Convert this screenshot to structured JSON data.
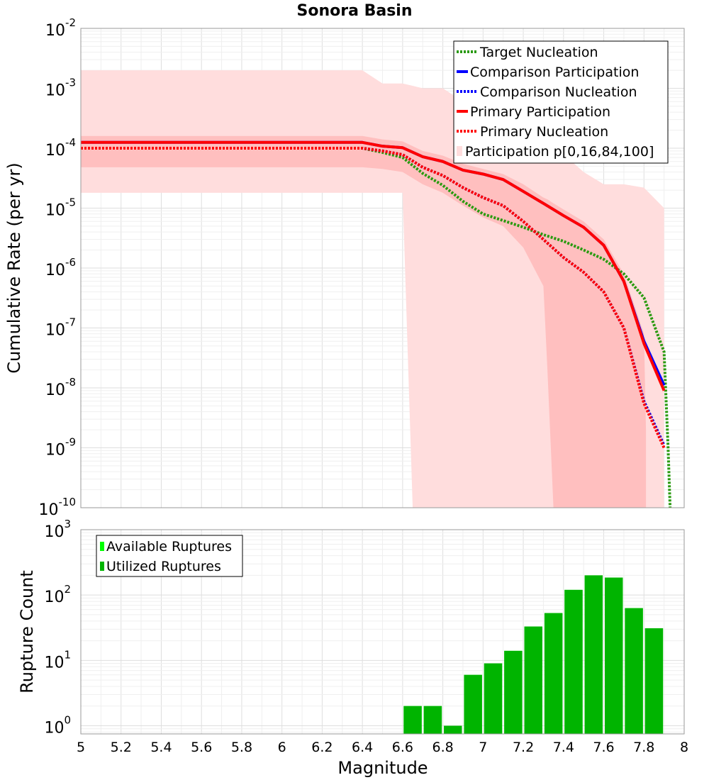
{
  "colors": {
    "target": "#2a9a10",
    "comparison": "#0000ff",
    "primary": "#ff0000",
    "band_outer": "#ffdddd",
    "band_inner": "#ffbfbf",
    "available": "#00ff00",
    "utilized": "#00b400"
  },
  "chart_data": [
    {
      "type": "line",
      "title": "Sonora Basin",
      "xlabel": "",
      "ylabel": "Cumulative Rate (per yr)",
      "xlim": [
        5,
        8
      ],
      "ylim": [
        1e-10,
        0.01
      ],
      "yscale": "log",
      "ytick_labels": [
        {
          "base": "10",
          "exp": "-2"
        },
        {
          "base": "10",
          "exp": "-3"
        },
        {
          "base": "10",
          "exp": "-4"
        },
        {
          "base": "10",
          "exp": "-5"
        },
        {
          "base": "10",
          "exp": "-6"
        },
        {
          "base": "10",
          "exp": "-7"
        },
        {
          "base": "10",
          "exp": "-8"
        },
        {
          "base": "10",
          "exp": "-9"
        },
        {
          "base": "10",
          "exp": "-10"
        }
      ],
      "legend": [
        "Target Nucleation",
        "Comparison Participation",
        "Comparison Nucleation",
        "Primary Participation",
        "Primary Nucleation",
        "Participation p[0,16,84,100]"
      ],
      "legend_position": "top-right",
      "x": [
        5.0,
        5.1,
        5.2,
        5.3,
        5.4,
        5.5,
        5.6,
        5.7,
        5.8,
        5.9,
        6.0,
        6.1,
        6.2,
        6.3,
        6.4,
        6.5,
        6.6,
        6.7,
        6.8,
        6.9,
        7.0,
        7.1,
        7.2,
        7.3,
        7.4,
        7.5,
        7.6,
        7.7,
        7.8,
        7.9
      ],
      "series": [
        {
          "name": "Target Nucleation",
          "style": "dotted",
          "x": [
            5.0,
            6.4,
            6.5,
            6.6,
            6.7,
            6.8,
            6.9,
            7.0,
            7.1,
            7.2,
            7.3,
            7.4,
            7.5,
            7.6,
            7.7,
            7.8,
            7.9,
            7.92,
            7.93
          ],
          "values": [
            0.0001,
            0.0001,
            8.5e-05,
            7e-05,
            3.8e-05,
            2.4e-05,
            1.3e-05,
            8e-06,
            6.2e-06,
            4.8e-06,
            3.6e-06,
            2.8e-06,
            2e-06,
            1.4e-06,
            8e-07,
            3.2e-07,
            4e-08,
            1e-09,
            1e-10
          ]
        },
        {
          "name": "Comparison Participation",
          "style": "solid",
          "x": [
            5.0,
            6.4,
            6.5,
            6.6,
            6.7,
            6.8,
            6.9,
            7.0,
            7.1,
            7.2,
            7.3,
            7.4,
            7.5,
            7.6,
            7.7,
            7.8,
            7.9
          ],
          "values": [
            0.000125,
            0.000125,
            0.000108,
            0.000102,
            7.2e-05,
            6e-05,
            4.3e-05,
            3.7e-05,
            3e-05,
            1.9e-05,
            1.2e-05,
            7.5e-06,
            4.8e-06,
            2.4e-06,
            6e-07,
            6e-08,
            1.1e-08
          ]
        },
        {
          "name": "Comparison Nucleation",
          "style": "dotted",
          "x": [
            5.0,
            6.4,
            6.5,
            6.6,
            6.7,
            6.8,
            6.9,
            7.0,
            7.1,
            7.2,
            7.3,
            7.4,
            7.5,
            7.6,
            7.7,
            7.8,
            7.9
          ],
          "values": [
            0.0001,
            0.0001,
            9e-05,
            7.8e-05,
            4.8e-05,
            3.5e-05,
            2.2e-05,
            1.5e-05,
            1.1e-05,
            6e-06,
            3e-06,
            1.5e-06,
            8.5e-07,
            4e-07,
            1e-07,
            6e-09,
            1.1e-09
          ]
        },
        {
          "name": "Primary Participation",
          "style": "solid",
          "x": [
            5.0,
            6.4,
            6.5,
            6.6,
            6.7,
            6.8,
            6.9,
            7.0,
            7.1,
            7.2,
            7.3,
            7.4,
            7.5,
            7.6,
            7.7,
            7.8,
            7.9
          ],
          "values": [
            0.000125,
            0.000125,
            0.000108,
            0.000102,
            7.2e-05,
            6e-05,
            4.3e-05,
            3.7e-05,
            3e-05,
            1.9e-05,
            1.2e-05,
            7.5e-06,
            4.8e-06,
            2.4e-06,
            6e-07,
            5.5e-08,
            9e-09
          ]
        },
        {
          "name": "Primary Nucleation",
          "style": "dotted",
          "x": [
            5.0,
            6.4,
            6.5,
            6.6,
            6.7,
            6.8,
            6.9,
            7.0,
            7.1,
            7.2,
            7.3,
            7.4,
            7.5,
            7.6,
            7.7,
            7.8,
            7.9
          ],
          "values": [
            0.0001,
            0.0001,
            9e-05,
            7.8e-05,
            4.8e-05,
            3.5e-05,
            2.2e-05,
            1.5e-05,
            1.1e-05,
            6e-06,
            3e-06,
            1.5e-06,
            8.5e-07,
            4e-07,
            1e-07,
            5.5e-09,
            1e-09
          ]
        }
      ],
      "bands": [
        {
          "name": "Participation p[0,100]",
          "x": [
            5.0,
            6.4,
            6.5,
            6.6,
            6.65,
            6.7,
            6.8,
            6.9,
            7.0,
            7.1,
            7.2,
            7.3,
            7.4,
            7.5,
            7.6,
            7.7,
            7.8,
            7.9
          ],
          "upper": [
            0.002,
            0.002,
            0.0012,
            0.0012,
            0.0011,
            0.001,
            0.001,
            0.0006,
            0.0004,
            0.0003,
            0.0002,
            0.00015,
            8e-05,
            4e-05,
            2.5e-05,
            2.5e-05,
            2.2e-05,
            1e-05
          ],
          "lower": [
            1.8e-05,
            1.8e-05,
            1.8e-05,
            1.8e-05,
            1e-10,
            1e-10,
            1e-10,
            1e-10,
            1e-10,
            1e-10,
            1e-10,
            1e-10,
            1e-10,
            1e-10,
            1e-10,
            1e-10,
            1e-10,
            1e-10
          ]
        },
        {
          "name": "Participation p[16,84]",
          "x": [
            5.0,
            6.4,
            6.5,
            6.6,
            6.7,
            6.8,
            6.9,
            7.0,
            7.1,
            7.2,
            7.3,
            7.32,
            7.35,
            7.4,
            7.5,
            7.6,
            7.7,
            7.8,
            7.81
          ],
          "upper": [
            0.00016,
            0.00016,
            0.00014,
            0.00013,
            9e-05,
            7.5e-05,
            5.5e-05,
            4.5e-05,
            3.7e-05,
            2.5e-05,
            1.5e-05,
            1.4e-05,
            1.2e-05,
            9.5e-06,
            6e-06,
            3e-06,
            8e-07,
            8e-08,
            2e-09
          ],
          "lower": [
            4.8e-05,
            4.8e-05,
            4.5e-05,
            4e-05,
            2.5e-05,
            1.8e-05,
            1.1e-05,
            7e-06,
            5e-06,
            2.2e-06,
            5e-07,
            2e-08,
            1e-10,
            1e-10,
            1e-10,
            1e-10,
            1e-10,
            1e-10,
            1e-10
          ]
        }
      ]
    },
    {
      "type": "bar",
      "title": "",
      "xlabel": "Magnitude",
      "ylabel": "Rupture Count",
      "xlim": [
        5,
        8
      ],
      "ylim": [
        0.75,
        1000
      ],
      "yscale": "log",
      "ytick_labels": [
        {
          "base": "10",
          "exp": "3"
        },
        {
          "base": "10",
          "exp": "2"
        },
        {
          "base": "10",
          "exp": "1"
        },
        {
          "base": "10",
          "exp": "0"
        }
      ],
      "xticks": [
        "5",
        "5.2",
        "5.4",
        "5.6",
        "5.8",
        "6",
        "6.2",
        "6.4",
        "6.6",
        "6.8",
        "7",
        "7.2",
        "7.4",
        "7.6",
        "7.8",
        "8"
      ],
      "legend": [
        "Available Ruptures",
        "Utilized Ruptures"
      ],
      "legend_position": "top-left",
      "bin_width": 0.1,
      "categories": [
        6.65,
        6.75,
        6.85,
        6.95,
        7.05,
        7.15,
        7.25,
        7.35,
        7.45,
        7.55,
        7.65,
        7.75,
        7.85
      ],
      "series": [
        {
          "name": "Available Ruptures",
          "values": [
            2,
            2,
            1,
            6,
            9,
            14,
            33,
            53,
            120,
            200,
            185,
            63,
            31
          ]
        },
        {
          "name": "Utilized Ruptures",
          "values": [
            2,
            2,
            1,
            6,
            9,
            14,
            33,
            53,
            120,
            200,
            185,
            63,
            31
          ]
        }
      ]
    }
  ]
}
